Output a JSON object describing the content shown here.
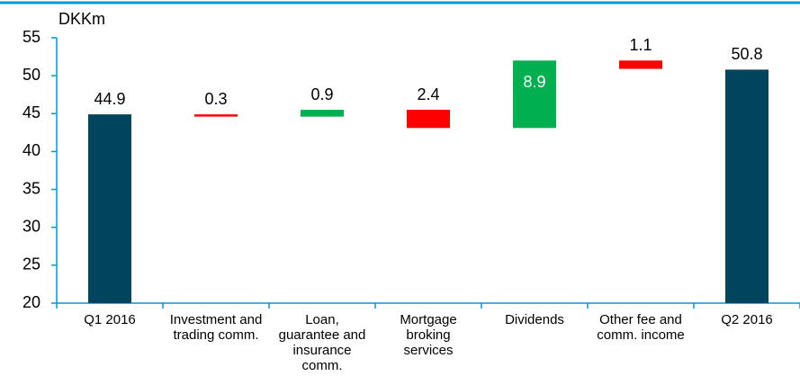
{
  "chart_data": {
    "type": "waterfall",
    "y_unit_label": "DKKm",
    "categories": [
      "Q1 2016",
      "Investment and trading comm.",
      "Loan, guarantee and insurance comm.",
      "Mortgage broking services",
      "Dividends",
      "Other fee and comm. income",
      "Q2 2016"
    ],
    "values": [
      44.9,
      -0.3,
      0.9,
      -2.4,
      8.9,
      -1.1,
      50.8
    ],
    "value_labels": [
      "44.9",
      "0.3",
      "0.9",
      "2.4",
      "8.9",
      "1.1",
      "50.8"
    ],
    "colors": [
      "#00445e",
      "#ff0000",
      "#00b050",
      "#ff0000",
      "#00b050",
      "#ff0000",
      "#00445e"
    ],
    "ylim": [
      20,
      55
    ],
    "yticks": [
      20,
      25,
      30,
      35,
      40,
      45,
      50,
      55
    ],
    "grid": false
  }
}
